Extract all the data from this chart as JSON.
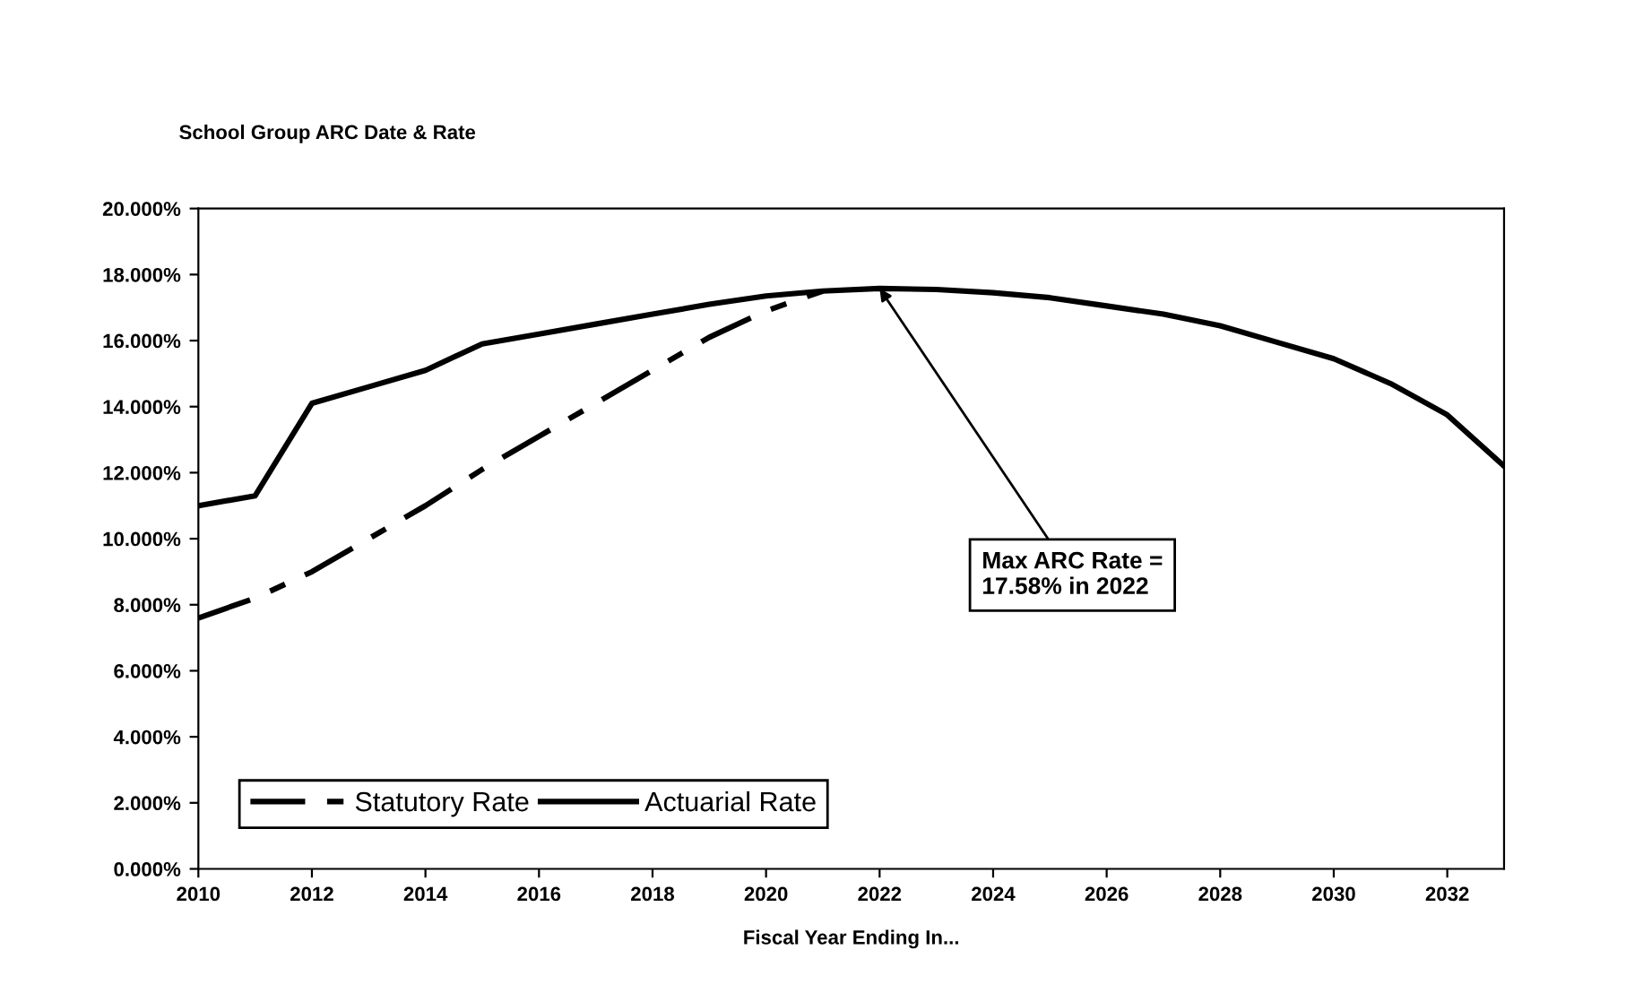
{
  "chart_data": {
    "type": "line",
    "title": "School Group ARC Date & Rate",
    "xlabel": "Fiscal Year Ending In...",
    "x": [
      2010,
      2011,
      2012,
      2013,
      2014,
      2015,
      2016,
      2017,
      2018,
      2019,
      2020,
      2021,
      2022,
      2023,
      2024,
      2025,
      2026,
      2027,
      2028,
      2029,
      2030,
      2031,
      2032,
      2033
    ],
    "series": [
      {
        "name": "Statutory Rate",
        "color": "#000000",
        "line_style": "dashed",
        "x": [
          2010,
          2011,
          2012,
          2013,
          2014,
          2015,
          2016,
          2017,
          2018,
          2019,
          2020,
          2021
        ],
        "values": [
          7.6,
          8.2,
          9.0,
          10.0,
          11.0,
          12.1,
          13.1,
          14.1,
          15.1,
          16.1,
          16.9,
          17.5
        ]
      },
      {
        "name": "Actuarial Rate",
        "color": "#000000",
        "line_style": "solid",
        "values": [
          11.0,
          11.3,
          14.1,
          14.6,
          15.1,
          15.9,
          16.2,
          16.5,
          16.8,
          17.1,
          17.35,
          17.5,
          17.58,
          17.55,
          17.45,
          17.3,
          17.05,
          16.8,
          16.45,
          15.95,
          15.45,
          14.7,
          13.75,
          12.2
        ]
      }
    ],
    "xlim": [
      2010,
      2033
    ],
    "xticks": [
      2010,
      2012,
      2014,
      2016,
      2018,
      2020,
      2022,
      2024,
      2026,
      2028,
      2030,
      2032
    ],
    "ylim": [
      0,
      20
    ],
    "yticks": [
      {
        "value": 0,
        "label": "0.000%"
      },
      {
        "value": 2,
        "label": "2.000%"
      },
      {
        "value": 4,
        "label": "4.000%"
      },
      {
        "value": 6,
        "label": "6.000%"
      },
      {
        "value": 8,
        "label": "8.000%"
      },
      {
        "value": 10,
        "label": "10.000%"
      },
      {
        "value": 12,
        "label": "12.000%"
      },
      {
        "value": 14,
        "label": "14.000%"
      },
      {
        "value": 16,
        "label": "16.000%"
      },
      {
        "value": 18,
        "label": "18.000%"
      },
      {
        "value": 20,
        "label": "20.000%"
      }
    ],
    "annotations": [
      {
        "text": "Max ARC Rate =\n17.58% in 2022",
        "x": 2022,
        "y": 17.58
      }
    ],
    "legend": "bottom left",
    "grid": false,
    "marker": "none"
  }
}
